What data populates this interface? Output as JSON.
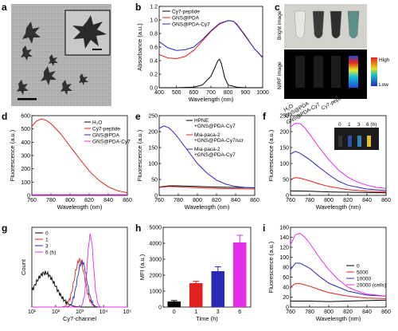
{
  "panels": {
    "a": {
      "letter": "a"
    },
    "b": {
      "letter": "b"
    },
    "c": {
      "letter": "c",
      "row_labels": [
        "Bright image",
        "NIRF image"
      ],
      "col_labels": [
        "H₂O",
        "GNS@PDA",
        "GNS@PDA-Cy7",
        "Cy7-peptide"
      ],
      "scale_high": "High",
      "scale_low": "Low"
    },
    "d": {
      "letter": "d"
    },
    "e": {
      "letter": "e"
    },
    "f": {
      "letter": "f",
      "inset_labels": [
        "0",
        "1",
        "3",
        "6 (h)"
      ]
    },
    "g": {
      "letter": "g"
    },
    "h": {
      "letter": "h"
    },
    "i": {
      "letter": "i"
    }
  },
  "colors": {
    "black": "#000000",
    "red": "#e0211d",
    "blue": "#2a2ab5",
    "magenta": "#e52ce6",
    "gray": "#9b9b9b"
  },
  "chart_data": [
    {
      "id": "b",
      "type": "line",
      "xlabel": "Wavelength (nm)",
      "ylabel": "Absorbance (a.u.)",
      "xlim": [
        400,
        1000
      ],
      "ylim": [
        0,
        1.2
      ],
      "xticks": [
        400,
        500,
        600,
        700,
        800,
        900,
        1000
      ],
      "yticks": [
        0.0,
        0.2,
        0.4,
        0.6,
        0.8,
        1.0,
        1.2
      ],
      "legend": "top-left",
      "series": [
        {
          "name": "Cy7-peptide",
          "color": "#000000",
          "x": [
            400,
            500,
            600,
            650,
            700,
            720,
            740,
            750,
            760,
            780,
            800,
            850,
            900,
            1000
          ],
          "y": [
            0.0,
            0.0,
            0.01,
            0.04,
            0.17,
            0.28,
            0.4,
            0.42,
            0.36,
            0.15,
            0.04,
            0.01,
            0.0,
            0.0
          ]
        },
        {
          "name": "GNS@PDA",
          "color": "#e0211d",
          "x": [
            400,
            450,
            500,
            550,
            600,
            650,
            700,
            750,
            800,
            830,
            850,
            900,
            950,
            1000
          ],
          "y": [
            0.49,
            0.44,
            0.43,
            0.46,
            0.55,
            0.69,
            0.83,
            0.94,
            0.99,
            0.98,
            0.94,
            0.77,
            0.58,
            0.44
          ]
        },
        {
          "name": "GNS@PDA-Cy7",
          "color": "#2a2ab5",
          "x": [
            400,
            450,
            500,
            550,
            600,
            650,
            700,
            750,
            800,
            830,
            850,
            900,
            950,
            1000
          ],
          "y": [
            0.68,
            0.59,
            0.55,
            0.56,
            0.6,
            0.71,
            0.84,
            0.95,
            0.99,
            0.98,
            0.93,
            0.76,
            0.58,
            0.45
          ]
        }
      ]
    },
    {
      "id": "d",
      "type": "line",
      "xlabel": "Wavelength (nm)",
      "ylabel": "Fluorescence (a.u.)",
      "xlim": [
        760,
        860
      ],
      "ylim": [
        0,
        600
      ],
      "xticks": [
        760,
        780,
        800,
        820,
        840,
        860
      ],
      "yticks": [
        0,
        100,
        200,
        300,
        400,
        500,
        600
      ],
      "legend": "top-right",
      "series": [
        {
          "name": "H₂O",
          "color": "#000000",
          "x": [
            760,
            860
          ],
          "y": [
            3,
            3
          ]
        },
        {
          "name": "Cy7-peptide",
          "color": "#e0211d",
          "x": [
            760,
            765,
            770,
            775,
            780,
            790,
            800,
            810,
            820,
            830,
            840,
            850,
            860
          ],
          "y": [
            520,
            560,
            575,
            565,
            540,
            465,
            370,
            275,
            185,
            115,
            65,
            35,
            20
          ]
        },
        {
          "name": "GNS@PDA",
          "color": "#2a2ab5",
          "x": [
            760,
            860
          ],
          "y": [
            4,
            4
          ]
        },
        {
          "name": "GNS@PDA-Cy7",
          "color": "#e52ce6",
          "x": [
            760,
            860
          ],
          "y": [
            5,
            5
          ]
        }
      ]
    },
    {
      "id": "e",
      "type": "line",
      "xlabel": "Wavelength (nm)",
      "ylabel": "Fluorescence (a.u.)",
      "xlim": [
        760,
        860
      ],
      "ylim": [
        0,
        250
      ],
      "xticks": [
        760,
        780,
        800,
        820,
        840,
        860
      ],
      "yticks": [
        0,
        50,
        100,
        150,
        200,
        250
      ],
      "legend": "top-right",
      "series": [
        {
          "name": "HPNE +GNS@PDA-Cy7",
          "color": "#000000",
          "x": [
            760,
            770,
            780,
            800,
            820,
            840,
            860
          ],
          "y": [
            26,
            30,
            30,
            28,
            26,
            25,
            24
          ]
        },
        {
          "name": "Mia-paca-2 +GNS@PDA-Cy7/scr",
          "color": "#e0211d",
          "x": [
            760,
            770,
            780,
            800,
            820,
            840,
            860
          ],
          "y": [
            25,
            28,
            27,
            24,
            22,
            21,
            20
          ]
        },
        {
          "name": "Mia-paca-2 +GNS@PDA-Cy7",
          "color": "#2a2ab5",
          "x": [
            760,
            765,
            770,
            775,
            780,
            790,
            800,
            810,
            820,
            830,
            840,
            850,
            860
          ],
          "y": [
            210,
            218,
            212,
            198,
            180,
            140,
            100,
            70,
            48,
            35,
            28,
            25,
            23
          ]
        }
      ]
    },
    {
      "id": "f",
      "type": "line",
      "xlabel": "Wavelength (nm)",
      "ylabel": "Fluorescence (a.u.)",
      "xlim": [
        760,
        860
      ],
      "ylim": [
        0,
        250
      ],
      "xticks": [
        760,
        780,
        800,
        820,
        840,
        860
      ],
      "yticks": [
        0,
        50,
        100,
        150,
        200,
        250
      ],
      "series": [
        {
          "name": "0",
          "color": "#000000",
          "x": [
            760,
            780,
            800,
            820,
            840,
            860
          ],
          "y": [
            14,
            13,
            11,
            10,
            9,
            8
          ]
        },
        {
          "name": "1",
          "color": "#e0211d",
          "x": [
            760,
            765,
            770,
            780,
            790,
            800,
            820,
            840,
            860
          ],
          "y": [
            50,
            56,
            54,
            46,
            36,
            28,
            18,
            13,
            11
          ]
        },
        {
          "name": "3",
          "color": "#2a2ab5",
          "x": [
            760,
            765,
            770,
            780,
            790,
            800,
            810,
            820,
            840,
            860
          ],
          "y": [
            130,
            138,
            132,
            112,
            88,
            65,
            45,
            32,
            20,
            15
          ]
        },
        {
          "name": "6",
          "color": "#e52ce6",
          "x": [
            760,
            765,
            770,
            775,
            780,
            790,
            800,
            810,
            820,
            830,
            840,
            850,
            860
          ],
          "y": [
            215,
            226,
            225,
            212,
            192,
            150,
            112,
            80,
            57,
            42,
            32,
            25,
            22
          ]
        }
      ]
    },
    {
      "id": "g",
      "type": "line",
      "xlabel": "Cy7-channel",
      "ylabel": "Count",
      "xscale": "log",
      "xlim": [
        10,
        100000
      ],
      "xticks": [
        "10¹",
        "10²",
        "10³",
        "10⁴",
        "10⁵"
      ],
      "legend": "top-left",
      "series": [
        {
          "name": "0",
          "color": "#000000"
        },
        {
          "name": "1",
          "color": "#e0211d"
        },
        {
          "name": "3",
          "color": "#2a2ab5"
        },
        {
          "name": "6 (h)",
          "color": "#e52ce6"
        }
      ]
    },
    {
      "id": "h",
      "type": "bar",
      "xlabel": "Time (h)",
      "ylabel": "MFI (a.u.)",
      "categories": [
        "0",
        "1",
        "3",
        "6"
      ],
      "values": [
        350,
        1500,
        2250,
        4050
      ],
      "errors": [
        60,
        120,
        280,
        450
      ],
      "bar_colors": [
        "#000000",
        "#e0211d",
        "#2a2ab5",
        "#e52ce6"
      ],
      "ylim": [
        0,
        5000
      ],
      "yticks": [
        0,
        1000,
        2000,
        3000,
        4000,
        5000
      ]
    },
    {
      "id": "i",
      "type": "line",
      "xlabel": "Wavelength (nm)",
      "ylabel": "Fluorescence (a.u.)",
      "xlim": [
        760,
        860
      ],
      "ylim": [
        0,
        160
      ],
      "xticks": [
        760,
        780,
        800,
        820,
        840,
        860
      ],
      "yticks": [
        0,
        20,
        40,
        60,
        80,
        100,
        120,
        140,
        160
      ],
      "legend": "bottom-right",
      "series": [
        {
          "name": "0",
          "color": "#000000",
          "x": [
            760,
            780,
            800,
            820,
            840,
            860
          ],
          "y": [
            12,
            12,
            11,
            12,
            13,
            14
          ]
        },
        {
          "name": "5000",
          "color": "#e0211d",
          "x": [
            760,
            765,
            770,
            780,
            790,
            800,
            820,
            840,
            860
          ],
          "y": [
            40,
            47,
            47,
            42,
            35,
            29,
            22,
            18,
            17
          ]
        },
        {
          "name": "10000",
          "color": "#2a2ab5",
          "x": [
            760,
            765,
            770,
            780,
            790,
            800,
            820,
            840,
            860
          ],
          "y": [
            75,
            88,
            88,
            78,
            62,
            48,
            32,
            24,
            22
          ]
        },
        {
          "name": "20000 (cells)",
          "color": "#e52ce6",
          "x": [
            760,
            765,
            770,
            775,
            780,
            790,
            800,
            810,
            820,
            830,
            840,
            860
          ],
          "y": [
            125,
            145,
            148,
            140,
            128,
            100,
            75,
            55,
            40,
            32,
            26,
            22
          ]
        }
      ]
    }
  ]
}
